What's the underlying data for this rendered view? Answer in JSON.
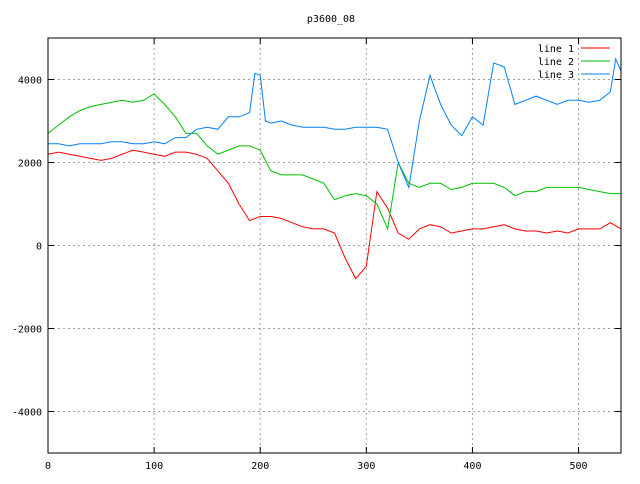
{
  "chart_data": {
    "type": "line",
    "title": "p3600_08",
    "xlabel": "",
    "ylabel": "",
    "xlim": [
      0,
      540
    ],
    "ylim": [
      -5000,
      5000
    ],
    "xticks": [
      0,
      100,
      200,
      300,
      400,
      500
    ],
    "yticks": [
      -4000,
      -2000,
      0,
      2000,
      4000
    ],
    "grid": true,
    "legend_position": "top-right",
    "series": [
      {
        "name": "line 1",
        "color": "#ff0000",
        "x": [
          0,
          10,
          20,
          30,
          40,
          50,
          60,
          70,
          80,
          90,
          100,
          110,
          120,
          130,
          140,
          150,
          160,
          170,
          180,
          190,
          200,
          210,
          220,
          230,
          240,
          250,
          260,
          270,
          280,
          290,
          300,
          310,
          320,
          330,
          340,
          350,
          360,
          370,
          380,
          390,
          400,
          410,
          420,
          430,
          440,
          450,
          460,
          470,
          480,
          490,
          500,
          510,
          520,
          530,
          540
        ],
        "y": [
          2200,
          2250,
          2200,
          2150,
          2100,
          2050,
          2100,
          2200,
          2300,
          2250,
          2200,
          2150,
          2250,
          2250,
          2200,
          2100,
          1800,
          1500,
          1000,
          600,
          700,
          700,
          650,
          550,
          450,
          400,
          400,
          300,
          -300,
          -800,
          -500,
          1300,
          900,
          300,
          150,
          400,
          500,
          450,
          300,
          350,
          400,
          400,
          450,
          500,
          400,
          350,
          350,
          300,
          350,
          300,
          400,
          400,
          400,
          550,
          400
        ]
      },
      {
        "name": "line 2",
        "color": "#00c000",
        "x": [
          0,
          10,
          20,
          30,
          40,
          50,
          60,
          70,
          80,
          90,
          100,
          110,
          120,
          130,
          140,
          150,
          160,
          170,
          180,
          190,
          200,
          210,
          220,
          230,
          240,
          250,
          260,
          270,
          280,
          290,
          300,
          310,
          320,
          330,
          340,
          350,
          360,
          370,
          380,
          390,
          400,
          410,
          420,
          430,
          440,
          450,
          460,
          470,
          480,
          490,
          500,
          510,
          520,
          530,
          540
        ],
        "y": [
          2700,
          2900,
          3100,
          3250,
          3350,
          3400,
          3450,
          3500,
          3450,
          3500,
          3650,
          3400,
          3100,
          2700,
          2700,
          2400,
          2200,
          2300,
          2400,
          2400,
          2300,
          1800,
          1700,
          1700,
          1700,
          1600,
          1500,
          1100,
          1200,
          1250,
          1200,
          1000,
          400,
          2000,
          1500,
          1400,
          1500,
          1500,
          1350,
          1400,
          1500,
          1500,
          1500,
          1400,
          1200,
          1300,
          1300,
          1400,
          1400,
          1400,
          1400,
          1350,
          1300,
          1250,
          1250
        ]
      },
      {
        "name": "line 3",
        "color": "#0080ff",
        "x": [
          0,
          10,
          20,
          30,
          40,
          50,
          60,
          70,
          80,
          90,
          100,
          110,
          120,
          130,
          140,
          150,
          160,
          170,
          180,
          190,
          195,
          200,
          205,
          210,
          220,
          230,
          240,
          250,
          260,
          270,
          280,
          290,
          300,
          310,
          320,
          330,
          340,
          350,
          360,
          370,
          380,
          390,
          400,
          410,
          420,
          430,
          440,
          450,
          460,
          470,
          480,
          490,
          500,
          510,
          520,
          530,
          535,
          540
        ],
        "y": [
          2450,
          2450,
          2400,
          2450,
          2450,
          2450,
          2500,
          2500,
          2450,
          2450,
          2500,
          2450,
          2600,
          2600,
          2800,
          2850,
          2800,
          3100,
          3100,
          3200,
          4150,
          4100,
          3000,
          2950,
          3000,
          2900,
          2850,
          2850,
          2850,
          2800,
          2800,
          2850,
          2850,
          2850,
          2800,
          2000,
          1400,
          3000,
          4100,
          3400,
          2900,
          2650,
          3100,
          2900,
          4400,
          4300,
          3400,
          3500,
          3600,
          3500,
          3400,
          3500,
          3500,
          3450,
          3500,
          3700,
          4500,
          4200
        ]
      }
    ]
  }
}
